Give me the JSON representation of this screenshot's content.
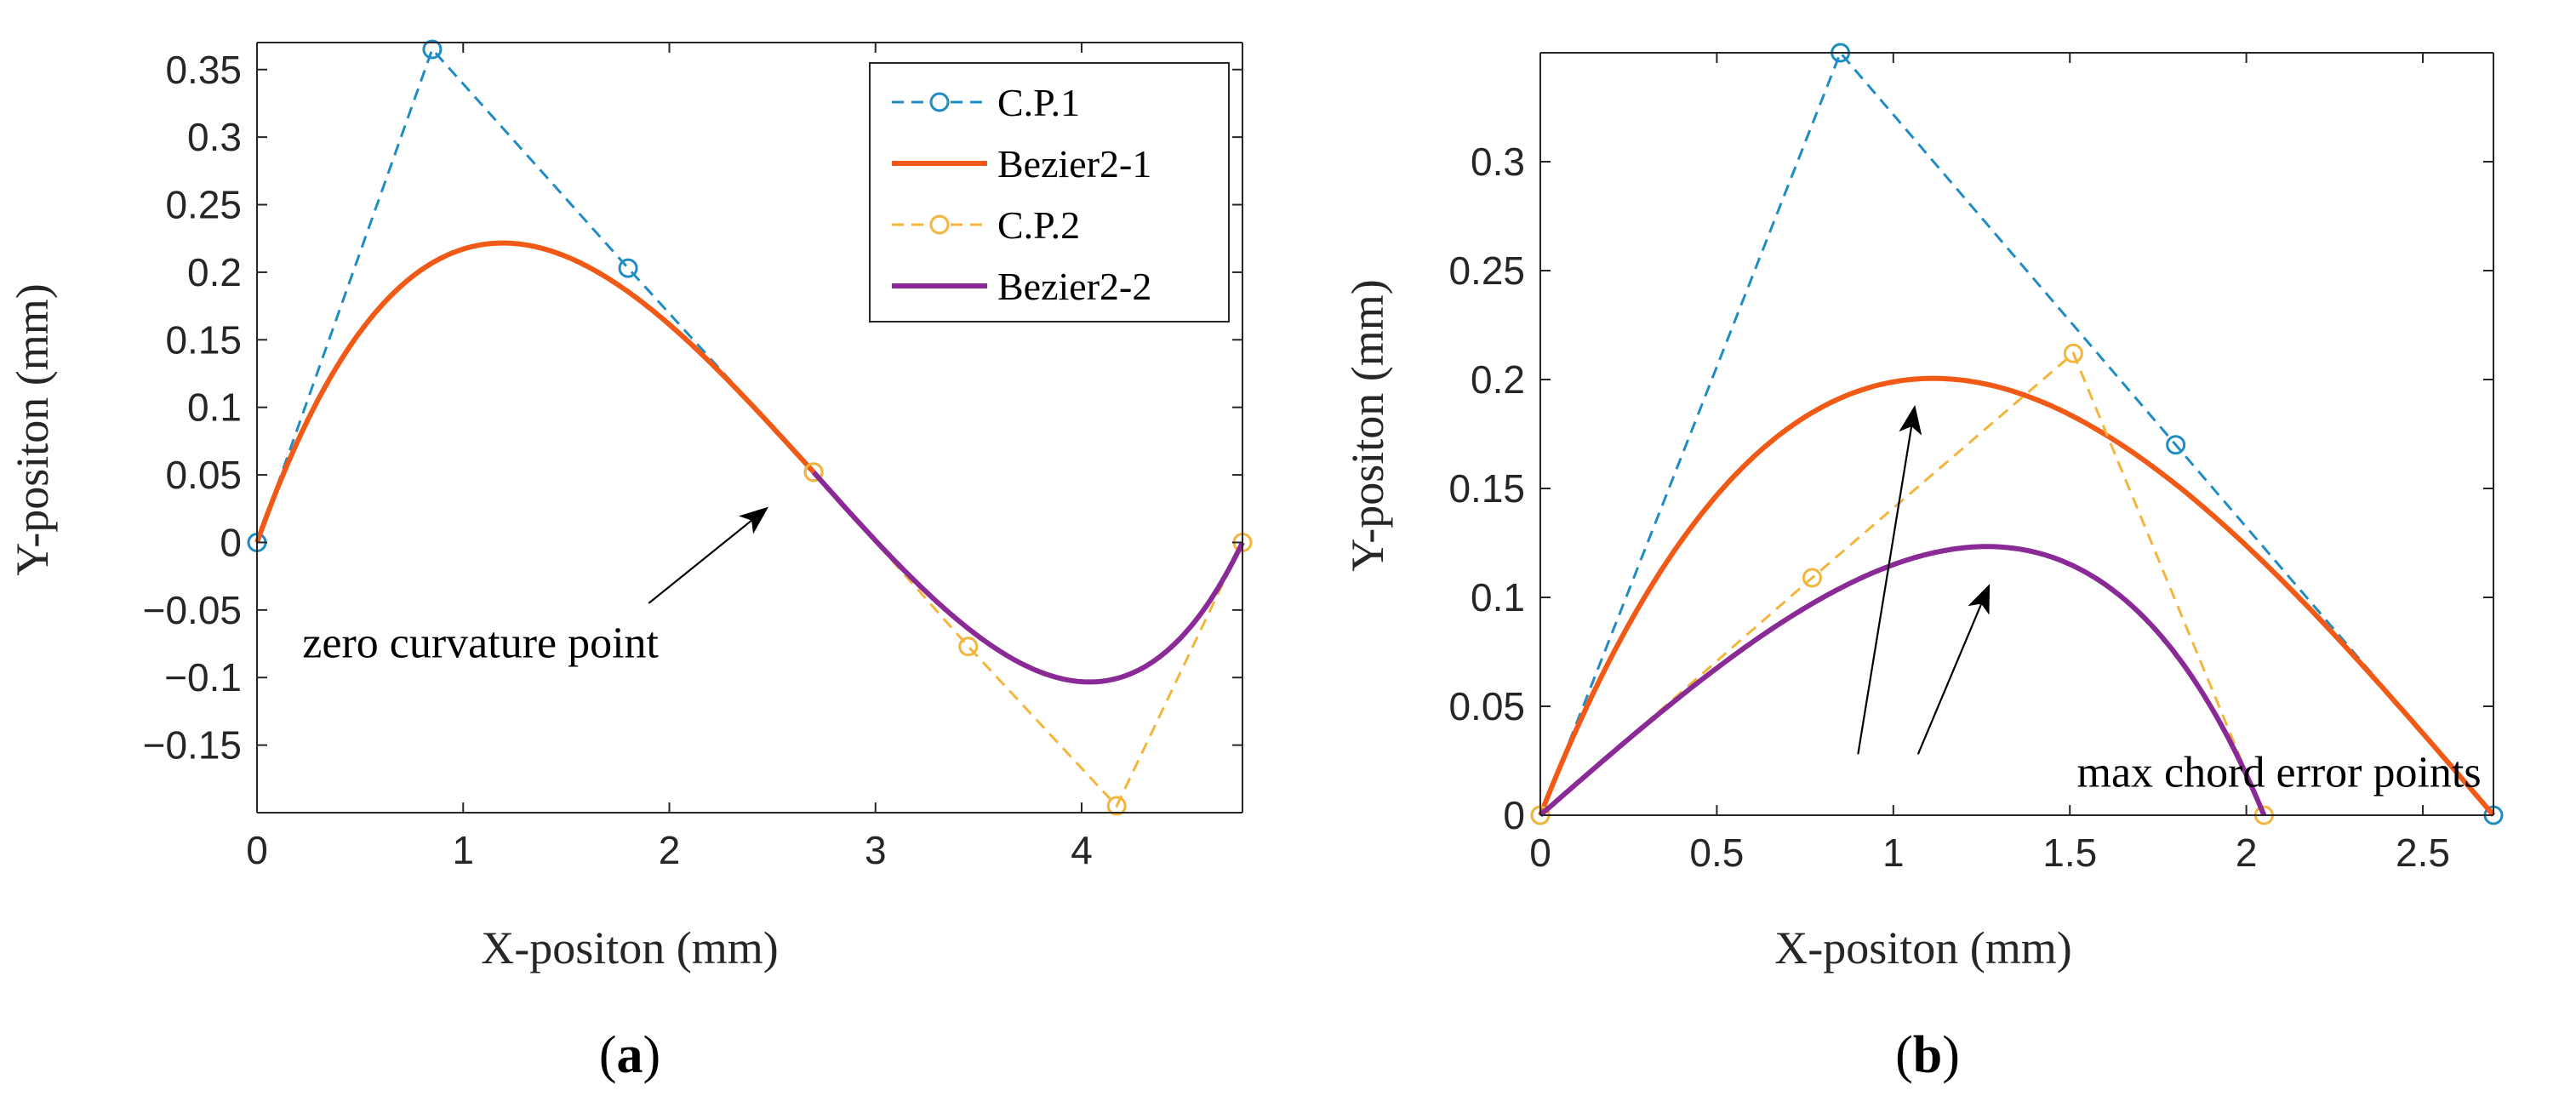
{
  "colors": {
    "cp1": "#1f8cc4",
    "bezier1": "#f05a16",
    "cp2": "#f3b53b",
    "bezier2": "#8a2a96",
    "axis": "#262626"
  },
  "chart_data": [
    {
      "type": "line",
      "panel_label": "a",
      "xlabel": "X-positon (mm)",
      "ylabel": "Y-positon (mm)",
      "xlim": [
        0,
        4.78
      ],
      "ylim": [
        -0.2,
        0.37
      ],
      "xticks": [
        0,
        1,
        2,
        3,
        4
      ],
      "xtick_labels": [
        "0",
        "1",
        "2",
        "3",
        "4"
      ],
      "yticks": [
        -0.15,
        -0.1,
        -0.05,
        0,
        0.05,
        0.1,
        0.15,
        0.2,
        0.25,
        0.3,
        0.35
      ],
      "ytick_labels": [
        "−0.15",
        "−0.1",
        "−0.05",
        "0",
        "0.05",
        "0.1",
        "0.15",
        "0.2",
        "0.25",
        "0.3",
        "0.35"
      ],
      "legend": [
        "C.P.1",
        "Bezier2-1",
        "C.P.2",
        "Bezier2-2"
      ],
      "legend_position": "top-right",
      "series": [
        {
          "name": "C.P.1",
          "style": "control",
          "color_key": "cp1",
          "points": [
            [
              0,
              0
            ],
            [
              0.85,
              0.365
            ],
            [
              1.8,
              0.203
            ],
            [
              2.7,
              0.052
            ]
          ]
        },
        {
          "name": "Bezier2-1",
          "style": "curve",
          "color_key": "bezier1",
          "control_points": [
            [
              0,
              0
            ],
            [
              0.85,
              0.365
            ],
            [
              1.8,
              0.203
            ],
            [
              2.7,
              0.052
            ]
          ]
        },
        {
          "name": "C.P.2",
          "style": "control",
          "color_key": "cp2",
          "points": [
            [
              2.7,
              0.052
            ],
            [
              3.45,
              -0.077
            ],
            [
              4.17,
              -0.195
            ],
            [
              4.78,
              0
            ]
          ]
        },
        {
          "name": "Bezier2-2",
          "style": "curve",
          "color_key": "bezier2",
          "control_points": [
            [
              2.7,
              0.052
            ],
            [
              3.45,
              -0.077
            ],
            [
              4.17,
              -0.195
            ],
            [
              4.78,
              0
            ]
          ]
        }
      ],
      "annotations": [
        {
          "text": "zero curvature point",
          "text_at": [
            0.22,
            -0.085
          ],
          "arrow_from": [
            1.9,
            -0.045
          ],
          "arrow_to": [
            2.47,
            0.025
          ]
        }
      ]
    },
    {
      "type": "line",
      "panel_label": "b",
      "xlabel": "X-positon (mm)",
      "ylabel": "Y-positon (mm)",
      "xlim": [
        0,
        2.7
      ],
      "ylim": [
        0,
        0.35
      ],
      "xticks": [
        0,
        0.5,
        1,
        1.5,
        2,
        2.5
      ],
      "xtick_labels": [
        "0",
        "0.5",
        "1",
        "1.5",
        "2",
        "2.5"
      ],
      "yticks": [
        0,
        0.05,
        0.1,
        0.15,
        0.2,
        0.25,
        0.3
      ],
      "ytick_labels": [
        "0",
        "0.05",
        "0.1",
        "0.15",
        "0.2",
        "0.25",
        "0.3"
      ],
      "series": [
        {
          "name": "C.P.1",
          "style": "control",
          "color_key": "cp1",
          "points": [
            [
              0,
              0
            ],
            [
              0.85,
              0.35
            ],
            [
              1.8,
              0.17
            ],
            [
              2.7,
              0
            ]
          ]
        },
        {
          "name": "Bezier2-1",
          "style": "curve",
          "color_key": "bezier1",
          "control_points": [
            [
              0,
              0
            ],
            [
              0.85,
              0.35
            ],
            [
              1.8,
              0.17
            ],
            [
              2.7,
              0
            ]
          ]
        },
        {
          "name": "C.P.2",
          "style": "control",
          "color_key": "cp2",
          "points": [
            [
              0,
              0
            ],
            [
              0.77,
              0.109
            ],
            [
              1.51,
              0.212
            ],
            [
              2.05,
              0
            ]
          ]
        },
        {
          "name": "Bezier2-2",
          "style": "curve",
          "color_key": "bezier2",
          "control_points": [
            [
              0,
              0
            ],
            [
              0.77,
              0.109
            ],
            [
              1.51,
              0.212
            ],
            [
              2.05,
              0
            ]
          ]
        }
      ],
      "annotations": [
        {
          "text": "max chord error points",
          "text_at": [
            1.52,
            0.013
          ],
          "arrows": [
            {
              "from": [
                0.9,
                0.028
              ],
              "to": [
                1.06,
                0.187
              ]
            },
            {
              "from": [
                1.07,
                0.028
              ],
              "to": [
                1.27,
                0.105
              ]
            }
          ]
        }
      ]
    }
  ]
}
